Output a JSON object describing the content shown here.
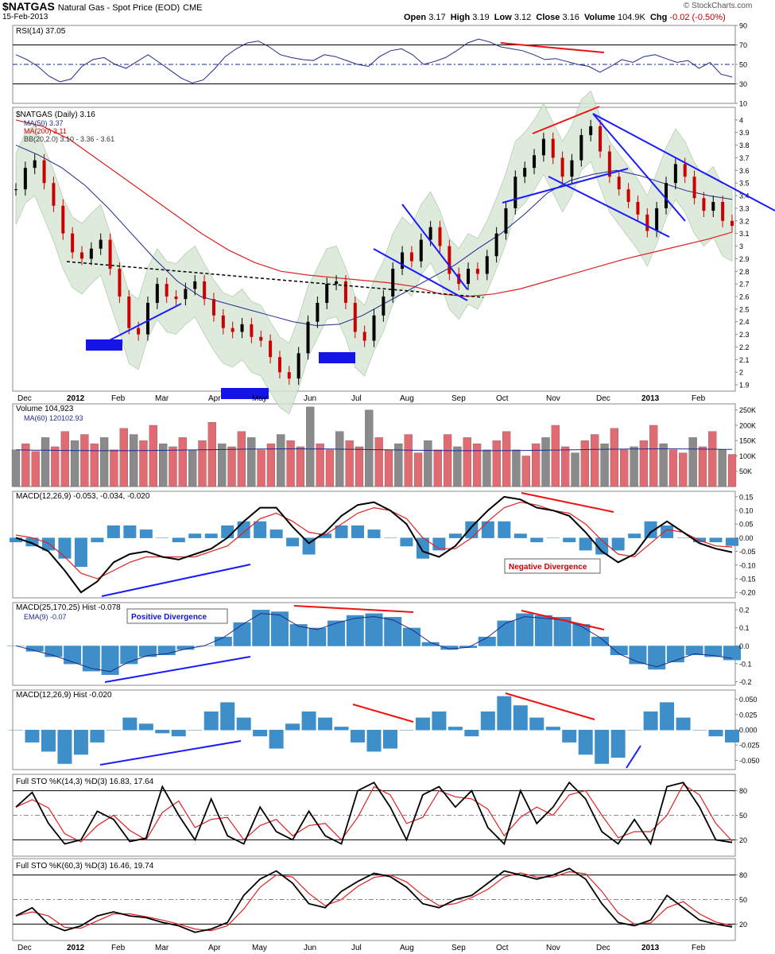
{
  "header": {
    "symbol": "$NATGAS",
    "name": "Natural Gas - Spot Price (EOD)",
    "exchange": "CME",
    "date": "15-Feb-2013",
    "open_label": "Open",
    "open": "3.17",
    "high_label": "High",
    "high": "3.19",
    "low_label": "Low",
    "low": "3.12",
    "close_label": "Close",
    "close": "3.16",
    "volume_label": "Volume",
    "volume": "104.9K",
    "chg_label": "Chg",
    "chg": "-0.02 (-0.50%)",
    "brand": "© StockCharts.com"
  },
  "colors": {
    "up": "#000000",
    "down": "#cc0000",
    "ma50": "#1f2a8c",
    "ma200": "#dd2222",
    "bb": "#9fc59a",
    "trend_blue": "#1a1aff",
    "trend_red": "#ee1111",
    "hist": "#3d8ec9"
  },
  "chart_data": [
    {
      "type": "line",
      "title": "RSI(14) 37.05",
      "ylim": [
        10,
        90
      ],
      "y_ticks": [
        10,
        30,
        50,
        70,
        90
      ],
      "levels": [
        30,
        50,
        70
      ],
      "legend_placement": "top-left",
      "series": [
        {
          "name": "RSI(14)",
          "values": [
            60,
            55,
            48,
            38,
            32,
            35,
            48,
            55,
            57,
            50,
            46,
            53,
            60,
            52,
            44,
            36,
            31,
            34,
            45,
            58,
            66,
            72,
            74,
            68,
            60,
            57,
            55,
            54,
            60,
            58,
            54,
            50,
            48,
            58,
            64,
            66,
            60,
            50,
            53,
            57,
            64,
            72,
            76,
            73,
            68,
            66,
            64,
            60,
            55,
            56,
            53,
            50,
            48,
            42,
            48,
            55,
            52,
            58,
            60,
            56,
            52,
            54,
            46,
            52,
            40,
            37
          ]
        }
      ]
    },
    {
      "type": "candlestick",
      "title": "$NATGAS (Daily) 3.16",
      "ylim": [
        1.85,
        4.1
      ],
      "y_ticks": [
        1.9,
        2.0,
        2.1,
        2.2,
        2.3,
        2.4,
        2.5,
        2.6,
        2.7,
        2.8,
        2.9,
        3.0,
        3.1,
        3.2,
        3.3,
        3.4,
        3.5,
        3.6,
        3.7,
        3.8,
        3.9,
        4.0
      ],
      "x_ticks": [
        "Dec",
        "2012",
        "Feb",
        "Mar",
        "Apr",
        "May",
        "Jun",
        "Jul",
        "Aug",
        "Sep",
        "Oct",
        "Nov",
        "Dec",
        "2013",
        "Feb"
      ],
      "legend": [
        "MA(50) 3.37",
        "MA(200) 3.11",
        "BB(20,2.0) 3.10 - 3.36 - 3.61"
      ],
      "series": [
        {
          "name": "$NATGAS",
          "close": [
            3.45,
            3.62,
            3.68,
            3.5,
            3.32,
            3.1,
            2.95,
            2.9,
            2.98,
            3.05,
            2.82,
            2.6,
            2.35,
            2.3,
            2.55,
            2.7,
            2.6,
            2.58,
            2.66,
            2.72,
            2.58,
            2.45,
            2.35,
            2.32,
            2.38,
            2.28,
            2.25,
            2.12,
            2.0,
            1.95,
            2.15,
            2.4,
            2.55,
            2.7,
            2.72,
            2.55,
            2.32,
            2.25,
            2.45,
            2.6,
            2.82,
            2.95,
            2.88,
            3.05,
            3.15,
            3.0,
            2.78,
            2.7,
            2.82,
            2.78,
            2.92,
            3.1,
            3.3,
            3.55,
            3.62,
            3.72,
            3.85,
            3.7,
            3.55,
            3.68,
            3.88,
            3.95,
            3.75,
            3.55,
            3.45,
            3.35,
            3.25,
            3.12,
            3.3,
            3.5,
            3.65,
            3.55,
            3.38,
            3.28,
            3.35,
            3.2,
            3.16
          ]
        },
        {
          "name": "MA(50) 3.37",
          "values": [
            3.8,
            3.72,
            3.62,
            3.48,
            3.3,
            3.1,
            2.9,
            2.72,
            2.6,
            2.55,
            2.5,
            2.45,
            2.4,
            2.37,
            2.38,
            2.45,
            2.55,
            2.65,
            2.75,
            2.85,
            2.98,
            3.1,
            3.25,
            3.42,
            3.52,
            3.57,
            3.6,
            3.56,
            3.5,
            3.44,
            3.4,
            3.37
          ]
        },
        {
          "name": "MA(200) 3.11",
          "values": [
            4.0,
            3.95,
            3.85,
            3.7,
            3.55,
            3.4,
            3.25,
            3.1,
            2.97,
            2.87,
            2.8,
            2.77,
            2.75,
            2.73,
            2.71,
            2.68,
            2.62,
            2.6,
            2.62,
            2.66,
            2.72,
            2.78,
            2.84,
            2.9,
            2.95,
            3.0,
            3.05,
            3.11
          ]
        }
      ],
      "annotations": [
        "MA(50) 3.37",
        "MA(200) 3.11"
      ]
    },
    {
      "type": "bar",
      "title": "Volume 104,923",
      "legend": [
        "MA(60) 120102.93"
      ],
      "ylim": [
        0,
        270000
      ],
      "y_ticks": [
        "50K",
        "100K",
        "150K",
        "200K",
        "250K"
      ],
      "series": [
        {
          "name": "Volume",
          "values": [
            120,
            140,
            115,
            160,
            130,
            180,
            150,
            170,
            140,
            160,
            120,
            190,
            170,
            150,
            200,
            140,
            130,
            160,
            120,
            150,
            210,
            140,
            130,
            180,
            160,
            120,
            140,
            170,
            150,
            130,
            260,
            140,
            120,
            180,
            150,
            130,
            250,
            160,
            120,
            140,
            170,
            110,
            150,
            120,
            170,
            130,
            160,
            140,
            120,
            150,
            180,
            120,
            100,
            140,
            160,
            200,
            130,
            110,
            150,
            170,
            140,
            190,
            120,
            130,
            150,
            200,
            140,
            120,
            110,
            160,
            130,
            180,
            120,
            105
          ]
        }
      ]
    },
    {
      "type": "line",
      "title": "MACD(12,26,9) -0.053, -0.034, -0.020",
      "ylim": [
        -0.22,
        0.17
      ],
      "y_ticks": [
        "-0.20",
        "-0.15",
        "-0.10",
        "-0.05",
        "0.00",
        "0.05",
        "0.10",
        "0.15"
      ],
      "series": [
        {
          "name": "MACD",
          "values": [
            0.0,
            -0.02,
            -0.05,
            -0.12,
            -0.2,
            -0.16,
            -0.09,
            -0.06,
            -0.05,
            -0.07,
            -0.08,
            -0.06,
            -0.04,
            0.0,
            0.06,
            0.11,
            0.11,
            0.04,
            -0.02,
            0.02,
            0.08,
            0.12,
            0.13,
            0.1,
            0.05,
            -0.05,
            -0.07,
            -0.03,
            0.04,
            0.1,
            0.15,
            0.14,
            0.11,
            0.1,
            0.08,
            0.02,
            -0.05,
            -0.09,
            -0.06,
            0.02,
            0.06,
            0.02,
            -0.02,
            -0.04,
            -0.053
          ]
        },
        {
          "name": "Signal",
          "values": [
            0.01,
            0.0,
            -0.02,
            -0.07,
            -0.13,
            -0.15,
            -0.12,
            -0.09,
            -0.07,
            -0.07,
            -0.07,
            -0.07,
            -0.05,
            -0.03,
            0.02,
            0.07,
            0.09,
            0.06,
            0.02,
            0.01,
            0.05,
            0.09,
            0.11,
            0.1,
            0.07,
            0.0,
            -0.04,
            -0.04,
            0.0,
            0.06,
            0.11,
            0.13,
            0.12,
            0.1,
            0.09,
            0.05,
            -0.01,
            -0.06,
            -0.07,
            -0.02,
            0.03,
            0.02,
            -0.01,
            -0.03,
            -0.034
          ]
        }
      ],
      "annotations": [
        "Negative Divergence"
      ]
    },
    {
      "type": "line",
      "title": "MACD(25,170,25) Hist -0.078",
      "legend": [
        "EMA(9) -0.07"
      ],
      "ylim": [
        -0.22,
        0.24
      ],
      "y_ticks": [
        "-0.2",
        "-0.1",
        "0.0",
        "0.1",
        "0.2"
      ],
      "series": [
        {
          "name": "Hist",
          "values": [
            0.0,
            -0.03,
            -0.06,
            -0.1,
            -0.14,
            -0.16,
            -0.1,
            -0.06,
            -0.05,
            -0.02,
            0.0,
            0.05,
            0.13,
            0.2,
            0.19,
            0.12,
            0.1,
            0.14,
            0.17,
            0.18,
            0.16,
            0.1,
            0.02,
            -0.02,
            -0.01,
            0.05,
            0.14,
            0.18,
            0.17,
            0.16,
            0.12,
            0.05,
            -0.05,
            -0.1,
            -0.13,
            -0.09,
            -0.05,
            -0.06,
            -0.078
          ]
        }
      ],
      "annotations": [
        "Positive Divergence"
      ]
    },
    {
      "type": "bar",
      "title": "MACD(12,26,9) Hist -0.020",
      "ylim": [
        -0.065,
        0.065
      ],
      "y_ticks": [
        "-0.050",
        "-0.025",
        "0.000",
        "0.025",
        "0.050"
      ],
      "series": [
        {
          "name": "Hist",
          "values": [
            0.0,
            -0.02,
            -0.035,
            -0.055,
            -0.04,
            -0.02,
            0.0,
            0.02,
            0.01,
            -0.005,
            -0.01,
            0.0,
            0.03,
            0.045,
            0.02,
            -0.01,
            -0.03,
            0.01,
            0.03,
            0.02,
            0.005,
            -0.02,
            -0.035,
            -0.03,
            0.0,
            0.02,
            0.03,
            0.005,
            -0.01,
            0.03,
            0.055,
            0.04,
            0.02,
            0.005,
            -0.02,
            -0.04,
            -0.055,
            -0.045,
            0.0,
            0.03,
            0.045,
            0.02,
            0.0,
            -0.01,
            -0.02
          ]
        }
      ]
    },
    {
      "type": "line",
      "title": "Full STO %K(14,3) %D(3) 16.83, 17.64",
      "ylim": [
        0,
        100
      ],
      "y_ticks": [
        20,
        50,
        80
      ],
      "series": [
        {
          "name": "%K",
          "values": [
            60,
            78,
            40,
            15,
            20,
            55,
            45,
            18,
            22,
            85,
            50,
            20,
            70,
            25,
            15,
            60,
            30,
            20,
            55,
            25,
            15,
            80,
            90,
            60,
            20,
            75,
            85,
            60,
            80,
            35,
            15,
            80,
            40,
            60,
            90,
            70,
            30,
            15,
            45,
            15,
            85,
            90,
            60,
            20,
            16.83
          ]
        }
      ]
    },
    {
      "type": "line",
      "title": "Full STO %K(60,3) %D(3) 16.46, 19.74",
      "ylim": [
        0,
        100
      ],
      "y_ticks": [
        20,
        50,
        80
      ],
      "series": [
        {
          "name": "%K",
          "values": [
            30,
            40,
            20,
            12,
            18,
            30,
            35,
            30,
            28,
            22,
            18,
            10,
            14,
            22,
            55,
            75,
            85,
            70,
            45,
            40,
            60,
            72,
            82,
            78,
            65,
            45,
            40,
            50,
            55,
            70,
            85,
            80,
            75,
            80,
            88,
            75,
            45,
            22,
            18,
            25,
            55,
            40,
            25,
            20,
            16.46
          ]
        }
      ]
    }
  ]
}
